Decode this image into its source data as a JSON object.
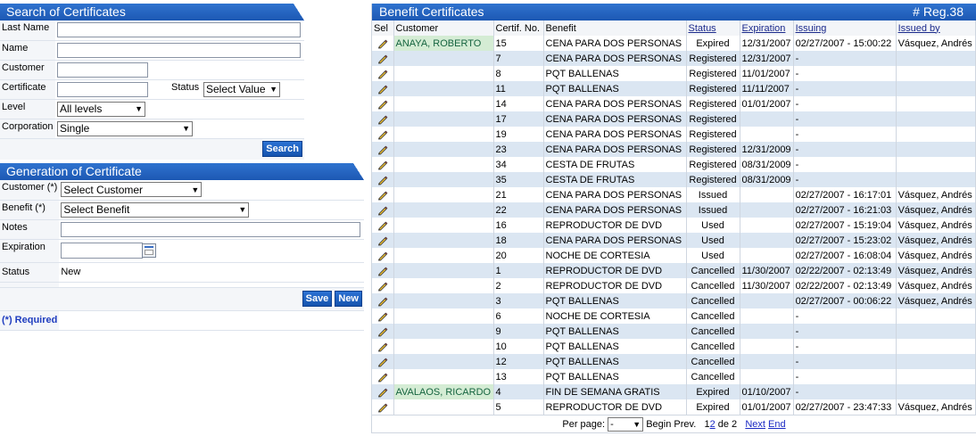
{
  "search": {
    "title": "Search of Certificates",
    "labels": {
      "last_name": "Last Name",
      "name": "Name",
      "customer": "Customer",
      "certificate": "Certificate",
      "status": "Status",
      "level": "Level",
      "corporation": "Corporation"
    },
    "values": {
      "last_name": "",
      "name": "",
      "customer": "",
      "certificate": "",
      "status": "Select Value",
      "level": "All levels",
      "corporation": "Single"
    },
    "search_button": "Search"
  },
  "generation": {
    "title": "Generation of Certificate",
    "labels": {
      "customer": "Customer (*)",
      "benefit": "Benefit (*)",
      "notes": "Notes",
      "expiration": "Expiration",
      "status": "Status"
    },
    "values": {
      "customer": "Select Customer",
      "benefit": "Select Benefit",
      "notes": "",
      "expiration": "",
      "status": "New"
    },
    "save_button": "Save",
    "new_button": "New",
    "required_note": "(*) Required"
  },
  "grid": {
    "title": "Benefit Certificates",
    "reg_count": "# Reg.38",
    "columns": [
      "Sel",
      "Customer",
      "Certif. No.",
      "Benefit",
      "Status",
      "Expiration",
      "Issuing",
      "Issued by"
    ],
    "rows": [
      {
        "customer": "ANAYA, ROBERTO",
        "cert": "15",
        "benefit": "CENA PARA DOS PERSONAS",
        "status": "Expired",
        "expiration": "12/31/2007",
        "issuing": "02/27/2007 - 15:00:22",
        "issued_by": "Vásquez, Andrés"
      },
      {
        "customer": "",
        "cert": "7",
        "benefit": "CENA PARA DOS PERSONAS",
        "status": "Registered",
        "expiration": "12/31/2007",
        "issuing": "-",
        "issued_by": ""
      },
      {
        "customer": "",
        "cert": "8",
        "benefit": "PQT BALLENAS",
        "status": "Registered",
        "expiration": "11/01/2007",
        "issuing": "-",
        "issued_by": ""
      },
      {
        "customer": "",
        "cert": "11",
        "benefit": "PQT BALLENAS",
        "status": "Registered",
        "expiration": "11/11/2007",
        "issuing": "-",
        "issued_by": ""
      },
      {
        "customer": "",
        "cert": "14",
        "benefit": "CENA PARA DOS PERSONAS",
        "status": "Registered",
        "expiration": "01/01/2007",
        "issuing": "-",
        "issued_by": ""
      },
      {
        "customer": "",
        "cert": "17",
        "benefit": "CENA PARA DOS PERSONAS",
        "status": "Registered",
        "expiration": "",
        "issuing": "-",
        "issued_by": ""
      },
      {
        "customer": "",
        "cert": "19",
        "benefit": "CENA PARA DOS PERSONAS",
        "status": "Registered",
        "expiration": "",
        "issuing": "-",
        "issued_by": ""
      },
      {
        "customer": "",
        "cert": "23",
        "benefit": "CENA PARA DOS PERSONAS",
        "status": "Registered",
        "expiration": "12/31/2009",
        "issuing": "-",
        "issued_by": ""
      },
      {
        "customer": "",
        "cert": "34",
        "benefit": "CESTA DE FRUTAS",
        "status": "Registered",
        "expiration": "08/31/2009",
        "issuing": "-",
        "issued_by": ""
      },
      {
        "customer": "",
        "cert": "35",
        "benefit": "CESTA DE FRUTAS",
        "status": "Registered",
        "expiration": "08/31/2009",
        "issuing": "-",
        "issued_by": ""
      },
      {
        "customer": "",
        "cert": "21",
        "benefit": "CENA PARA DOS PERSONAS",
        "status": "Issued",
        "expiration": "",
        "issuing": "02/27/2007 - 16:17:01",
        "issued_by": "Vásquez, Andrés"
      },
      {
        "customer": "",
        "cert": "22",
        "benefit": "CENA PARA DOS PERSONAS",
        "status": "Issued",
        "expiration": "",
        "issuing": "02/27/2007 - 16:21:03",
        "issued_by": "Vásquez, Andrés"
      },
      {
        "customer": "",
        "cert": "16",
        "benefit": "REPRODUCTOR DE DVD",
        "status": "Used",
        "expiration": "",
        "issuing": "02/27/2007 - 15:19:04",
        "issued_by": "Vásquez, Andrés"
      },
      {
        "customer": "",
        "cert": "18",
        "benefit": "CENA PARA DOS PERSONAS",
        "status": "Used",
        "expiration": "",
        "issuing": "02/27/2007 - 15:23:02",
        "issued_by": "Vásquez, Andrés"
      },
      {
        "customer": "",
        "cert": "20",
        "benefit": "NOCHE DE CORTESIA",
        "status": "Used",
        "expiration": "",
        "issuing": "02/27/2007 - 16:08:04",
        "issued_by": "Vásquez, Andrés"
      },
      {
        "customer": "",
        "cert": "1",
        "benefit": "REPRODUCTOR DE DVD",
        "status": "Cancelled",
        "expiration": "11/30/2007",
        "issuing": "02/22/2007 - 02:13:49",
        "issued_by": "Vásquez, Andrés"
      },
      {
        "customer": "",
        "cert": "2",
        "benefit": "REPRODUCTOR DE DVD",
        "status": "Cancelled",
        "expiration": "11/30/2007",
        "issuing": "02/22/2007 - 02:13:49",
        "issued_by": "Vásquez, Andrés"
      },
      {
        "customer": "",
        "cert": "3",
        "benefit": "PQT BALLENAS",
        "status": "Cancelled",
        "expiration": "",
        "issuing": "02/27/2007 - 00:06:22",
        "issued_by": "Vásquez, Andrés"
      },
      {
        "customer": "",
        "cert": "6",
        "benefit": "NOCHE DE CORTESIA",
        "status": "Cancelled",
        "expiration": "",
        "issuing": "-",
        "issued_by": ""
      },
      {
        "customer": "",
        "cert": "9",
        "benefit": "PQT BALLENAS",
        "status": "Cancelled",
        "expiration": "",
        "issuing": "-",
        "issued_by": ""
      },
      {
        "customer": "",
        "cert": "10",
        "benefit": "PQT BALLENAS",
        "status": "Cancelled",
        "expiration": "",
        "issuing": "-",
        "issued_by": ""
      },
      {
        "customer": "",
        "cert": "12",
        "benefit": "PQT BALLENAS",
        "status": "Cancelled",
        "expiration": "",
        "issuing": "-",
        "issued_by": ""
      },
      {
        "customer": "",
        "cert": "13",
        "benefit": "PQT BALLENAS",
        "status": "Cancelled",
        "expiration": "",
        "issuing": "-",
        "issued_by": ""
      },
      {
        "customer": "AVALAOS, RICARDO",
        "cert": "4",
        "benefit": "FIN DE SEMANA GRATIS",
        "status": "Expired",
        "expiration": "01/10/2007",
        "issuing": "-",
        "issued_by": ""
      },
      {
        "customer": "",
        "cert": "5",
        "benefit": "REPRODUCTOR DE DVD",
        "status": "Expired",
        "expiration": "01/01/2007",
        "issuing": "02/27/2007 - 23:47:33",
        "issued_by": "Vásquez, Andrés"
      }
    ],
    "pager": {
      "per_page_label": "Per page:",
      "per_page_value": "-",
      "begin": "Begin",
      "prev": "Prev.",
      "page_1": "1",
      "page_2": "2",
      "of_text": "de 2",
      "next": "Next",
      "end": "End"
    }
  },
  "colors": {
    "header_blue": "#1d58b3",
    "row_alt": "#dbe6f2",
    "customer_text": "#15643f",
    "link_blue": "#1b2ac4"
  },
  "icons": {
    "select": "pencil-icon",
    "calendar": "calendar-icon",
    "dropdown": "chevron-down-icon"
  }
}
